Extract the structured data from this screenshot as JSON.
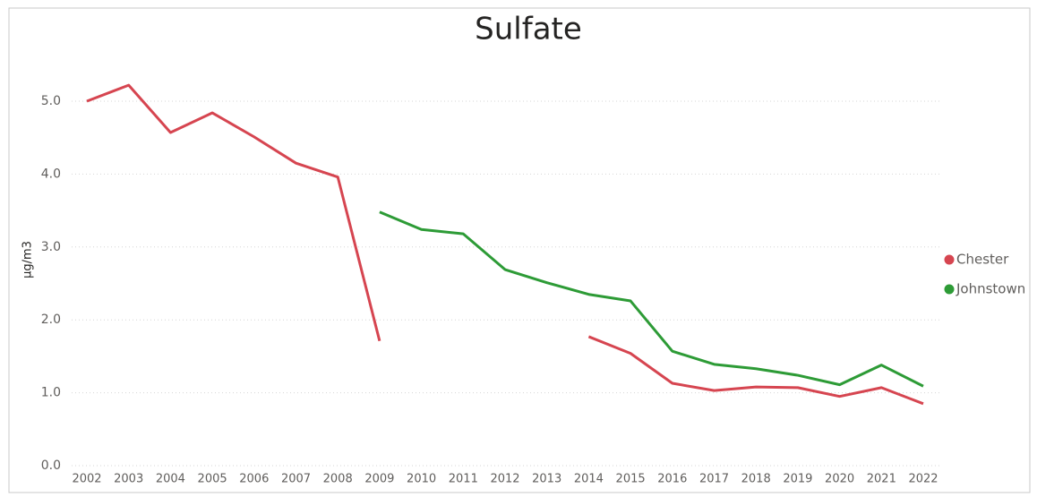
{
  "chart_data": {
    "type": "line",
    "title": "Sulfate",
    "y_label": "µg/m3",
    "categories": [
      "2002",
      "2003",
      "2004",
      "2005",
      "2006",
      "2007",
      "2008",
      "2009",
      "2010",
      "2011",
      "2012",
      "2013",
      "2014",
      "2015",
      "2016",
      "2017",
      "2018",
      "2019",
      "2020",
      "2021",
      "2022"
    ],
    "series": [
      {
        "name": "Chester",
        "color": "#d64550",
        "values": [
          5.0,
          5.22,
          4.57,
          4.84,
          4.51,
          4.15,
          3.96,
          1.71,
          null,
          null,
          null,
          null,
          1.77,
          1.54,
          1.13,
          1.03,
          1.08,
          1.07,
          0.95,
          1.07,
          0.85
        ]
      },
      {
        "name": "Johnstown",
        "color": "#2d9b36",
        "values": [
          null,
          null,
          null,
          null,
          null,
          null,
          null,
          3.48,
          3.24,
          3.18,
          2.69,
          2.51,
          2.35,
          2.26,
          1.57,
          1.39,
          1.33,
          1.24,
          1.11,
          1.38,
          1.09
        ]
      }
    ],
    "ylim": [
      0,
      5.5
    ],
    "yticks": [
      {
        "value": 0,
        "label": "0.0"
      },
      {
        "value": 1,
        "label": "1.0"
      },
      {
        "value": 2,
        "label": "2.0"
      },
      {
        "value": 3,
        "label": "3.0"
      },
      {
        "value": 4,
        "label": "4.0"
      },
      {
        "value": 5,
        "label": "5.0"
      }
    ],
    "grid": true,
    "legend": "right"
  }
}
